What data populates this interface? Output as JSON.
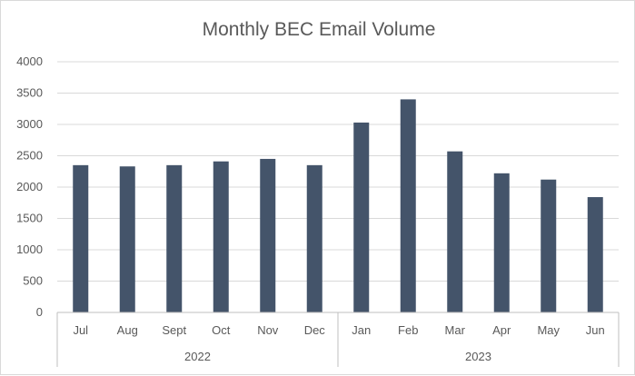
{
  "chart_data": {
    "type": "bar",
    "title": "Monthly BEC Email Volume",
    "xlabel": "",
    "ylabel": "",
    "ylim": [
      0,
      4000
    ],
    "yticks": [
      0,
      500,
      1000,
      1500,
      2000,
      2500,
      3000,
      3500,
      4000
    ],
    "categories": [
      "Jul",
      "Aug",
      "Sept",
      "Oct",
      "Nov",
      "Dec",
      "Jan",
      "Feb",
      "Mar",
      "Apr",
      "May",
      "Jun"
    ],
    "groups": [
      {
        "label": "2022",
        "count": 6
      },
      {
        "label": "2023",
        "count": 6
      }
    ],
    "values": [
      2350,
      2330,
      2350,
      2410,
      2450,
      2350,
      3030,
      3400,
      2570,
      2220,
      2120,
      1840
    ],
    "bar_color": "#44546a",
    "grid": true,
    "legend": "none"
  }
}
